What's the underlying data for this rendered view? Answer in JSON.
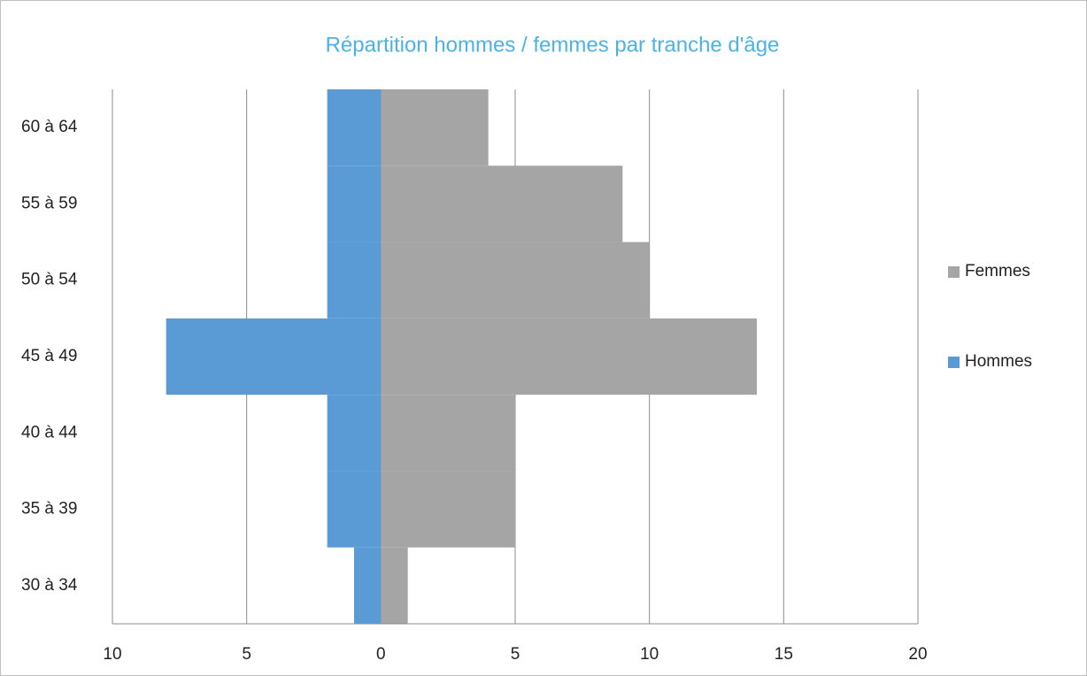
{
  "chart_data": {
    "type": "bar",
    "orientation": "horizontal",
    "stacked": true,
    "title": "Répartition hommes / femmes par tranche d'âge",
    "categories": [
      "30 à 34",
      "35 à 39",
      "40 à 44",
      "45 à 49",
      "50 à 54",
      "55 à 59",
      "60 à 64"
    ],
    "series": [
      {
        "name": "Hommes",
        "color": "#5b9bd5",
        "values": [
          -1,
          -2,
          -2,
          -8,
          -2,
          -2,
          -2
        ]
      },
      {
        "name": "Femmes",
        "color": "#a5a5a5",
        "values": [
          1,
          5,
          5,
          14,
          10,
          9,
          4
        ]
      }
    ],
    "xlim": [
      -10,
      20
    ],
    "xticks": [
      {
        "value": -10,
        "label": "10"
      },
      {
        "value": -5,
        "label": "5"
      },
      0,
      5,
      10,
      15,
      20
    ],
    "grid": true,
    "legend": "right"
  }
}
